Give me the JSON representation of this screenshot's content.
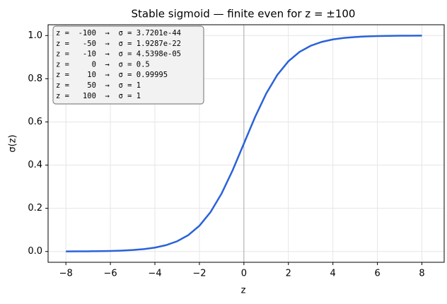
{
  "chart_data": {
    "type": "line",
    "title": "Stable sigmoid — finite even for z = ±100",
    "x_label": "z",
    "y_label": "σ(z)",
    "x": [
      -8,
      -7.5,
      -7,
      -6.5,
      -6,
      -5.5,
      -5,
      -4.5,
      -4,
      -3.5,
      -3,
      -2.5,
      -2,
      -1.5,
      -1,
      -0.5,
      0,
      0.5,
      1,
      1.5,
      2,
      2.5,
      3,
      3.5,
      4,
      4.5,
      5,
      5.5,
      6,
      6.5,
      7,
      7.5,
      8
    ],
    "series": [
      {
        "color": "#2a62d9",
        "values": [
          0.0003,
          0.0006,
          0.0009,
          0.0015,
          0.0025,
          0.0041,
          0.0067,
          0.011,
          0.018,
          0.0293,
          0.0474,
          0.0759,
          0.1192,
          0.1824,
          0.2689,
          0.3775,
          0.5,
          0.6225,
          0.7311,
          0.8176,
          0.8808,
          0.9241,
          0.9526,
          0.9707,
          0.982,
          0.989,
          0.9933,
          0.9959,
          0.9975,
          0.9985,
          0.9991,
          0.9994,
          0.9997
        ]
      }
    ],
    "xlim": [
      -8.8,
      9.0
    ],
    "ylim": [
      -0.05,
      1.05
    ],
    "xticks": [
      {
        "value": -8,
        "label": "−8"
      },
      {
        "value": -6,
        "label": "−6"
      },
      {
        "value": -4,
        "label": "−4"
      },
      {
        "value": -2,
        "label": "−2"
      },
      0,
      2,
      4,
      6,
      8
    ],
    "yticks": [
      {
        "value": 0,
        "label": "0.0"
      },
      0.2,
      0.4,
      0.6,
      0.8,
      {
        "value": 1,
        "label": "1.0"
      }
    ],
    "grid": true,
    "axvline": 0,
    "annotation": [
      "z =  -100  →  σ = 3.7201e-44",
      "z =   -50  →  σ = 1.9287e-22",
      "z =   -10  →  σ = 4.5398e-05",
      "z =     0  →  σ = 0.5",
      "z =    10  →  σ = 0.99995",
      "z =    50  →  σ = 1",
      "z =   100  →  σ = 1"
    ]
  }
}
